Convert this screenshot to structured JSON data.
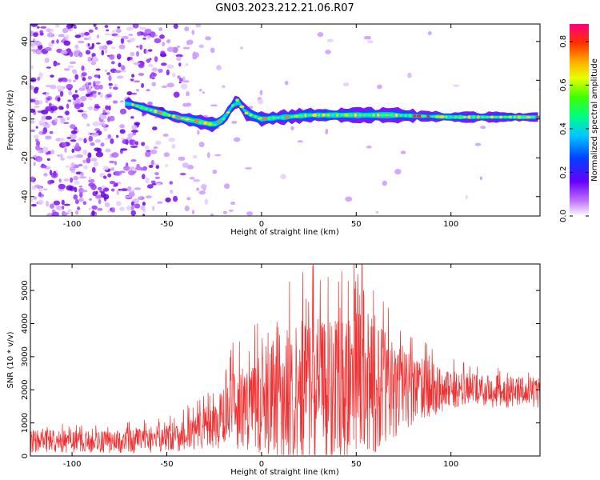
{
  "title": "GN03.2023.212.21.06.R07",
  "chart_data": [
    {
      "type": "heatmap",
      "xlabel": "Height of straight line (km)",
      "ylabel": "Frequency (Hz)",
      "xlim": [
        -122,
        147
      ],
      "ylim": [
        -50,
        49
      ],
      "xticks": [
        -100,
        -50,
        0,
        50,
        100
      ],
      "yticks": [
        -40,
        -20,
        0,
        20,
        40
      ],
      "colorbar": {
        "label": "Normalized spectral amplitude",
        "range": [
          0,
          0.88
        ],
        "ticks": [
          0.0,
          0.2,
          0.4,
          0.6,
          0.8
        ]
      },
      "ridge_frequency_hz": [
        {
          "x": -70,
          "y": 8
        },
        {
          "x": -60,
          "y": 5
        },
        {
          "x": -45,
          "y": 1
        },
        {
          "x": -25,
          "y": -3
        },
        {
          "x": -20,
          "y": 0
        },
        {
          "x": -13,
          "y": 10
        },
        {
          "x": -8,
          "y": 3
        },
        {
          "x": 0,
          "y": 0
        },
        {
          "x": 25,
          "y": 2
        },
        {
          "x": 50,
          "y": 2
        },
        {
          "x": 70,
          "y": 2
        },
        {
          "x": 100,
          "y": 1
        },
        {
          "x": 147,
          "y": 1
        }
      ]
    },
    {
      "type": "line",
      "xlabel": "Height of straight line (km)",
      "ylabel": "SNR (10 * v/v)",
      "xlim": [
        -122,
        147
      ],
      "ylim": [
        0,
        5800
      ],
      "xticks": [
        -100,
        -50,
        0,
        50,
        100
      ],
      "yticks": [
        0,
        1000,
        2000,
        3000,
        4000,
        5000
      ],
      "series": [
        {
          "color": "#f03030",
          "envelope": [
            {
              "x": -122,
              "mean": 450,
              "amp": 350
            },
            {
              "x": -80,
              "mean": 420,
              "amp": 330
            },
            {
              "x": -60,
              "mean": 470,
              "amp": 380
            },
            {
              "x": -40,
              "mean": 650,
              "amp": 500
            },
            {
              "x": -25,
              "mean": 900,
              "amp": 700
            },
            {
              "x": -15,
              "mean": 1400,
              "amp": 1200
            },
            {
              "x": 0,
              "mean": 1600,
              "amp": 1600
            },
            {
              "x": 20,
              "mean": 1900,
              "amp": 2300
            },
            {
              "x": 40,
              "mean": 2000,
              "amp": 2500
            },
            {
              "x": 55,
              "mean": 2100,
              "amp": 2300
            },
            {
              "x": 75,
              "mean": 2000,
              "amp": 1200
            },
            {
              "x": 100,
              "mean": 2000,
              "amp": 550
            },
            {
              "x": 147,
              "mean": 1900,
              "amp": 450
            }
          ],
          "peak": {
            "x": 53,
            "y": 5800
          }
        }
      ]
    }
  ]
}
